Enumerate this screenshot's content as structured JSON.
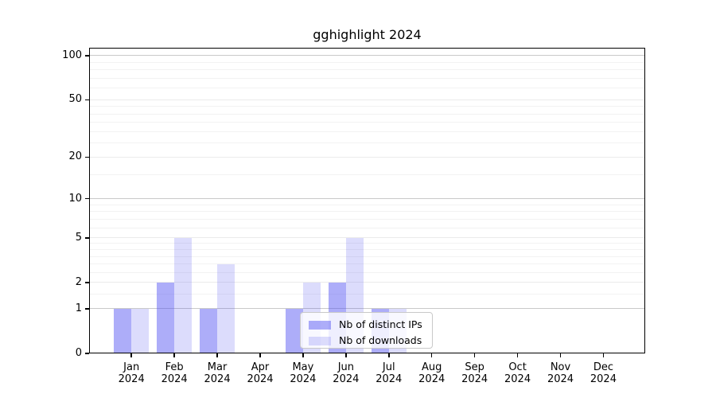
{
  "chart_data": {
    "type": "bar",
    "title": "gghighlight 2024",
    "categories": [
      "Jan 2024",
      "Feb 2024",
      "Mar 2024",
      "Apr 2024",
      "May 2024",
      "Jun 2024",
      "Jul 2024",
      "Aug 2024",
      "Sep 2024",
      "Oct 2024",
      "Nov 2024",
      "Dec 2024"
    ],
    "x_tick_months": [
      "Jan",
      "Feb",
      "Mar",
      "Apr",
      "May",
      "Jun",
      "Jul",
      "Aug",
      "Sep",
      "Oct",
      "Nov",
      "Dec"
    ],
    "x_tick_year": "2024",
    "series": [
      {
        "name": "Nb of distinct IPs",
        "color": "rgba(80,80,242,0.47)",
        "values": [
          1,
          2,
          1,
          0,
          1,
          2,
          1,
          0,
          0,
          0,
          0,
          0
        ]
      },
      {
        "name": "Nb of downloads",
        "color": "rgba(80,80,242,0.20)",
        "values": [
          1,
          5,
          3,
          0,
          2,
          5,
          1,
          0,
          0,
          0,
          0,
          0
        ]
      }
    ],
    "yscale": "log1p",
    "ylim": [
      0,
      113
    ],
    "y_ticks": [
      100,
      50,
      20,
      10,
      5,
      2,
      1,
      0
    ],
    "y_decade_gridlines": [
      1,
      10,
      100
    ],
    "y_major_gridlines": [
      2,
      5,
      20,
      50
    ],
    "y_minor_gridlines": [
      1.5,
      2.5,
      3,
      3.5,
      4,
      4.5,
      6,
      7,
      8,
      9,
      15,
      25,
      30,
      35,
      40,
      45,
      60,
      70,
      80,
      90
    ],
    "grid": true,
    "legend_position": "lower center",
    "legend_entries": [
      "Nb of distinct IPs",
      "Nb of downloads"
    ],
    "colors": {
      "decade_grid": "#c9c9c9",
      "major_grid": "#ebebeb",
      "minor_grid": "#f2f2f2",
      "axis": "#000000",
      "legend_border": "#c9c9c9"
    }
  }
}
